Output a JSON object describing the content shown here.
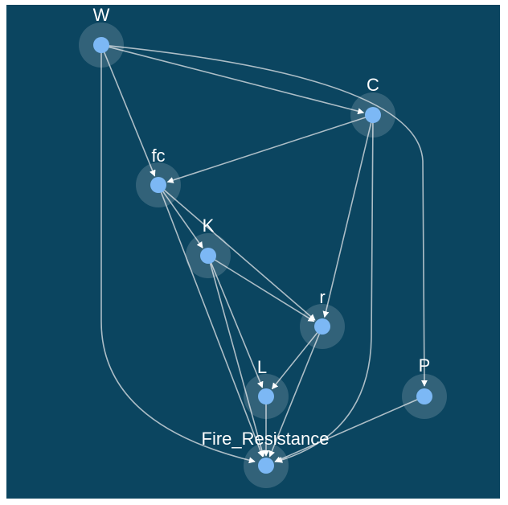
{
  "nodes": [
    {
      "label": "W"
    },
    {
      "label": "C"
    },
    {
      "label": "fc"
    },
    {
      "label": "K"
    },
    {
      "label": "r"
    },
    {
      "label": "L"
    },
    {
      "label": "P"
    },
    {
      "label": "Fire_Resistance"
    }
  ]
}
